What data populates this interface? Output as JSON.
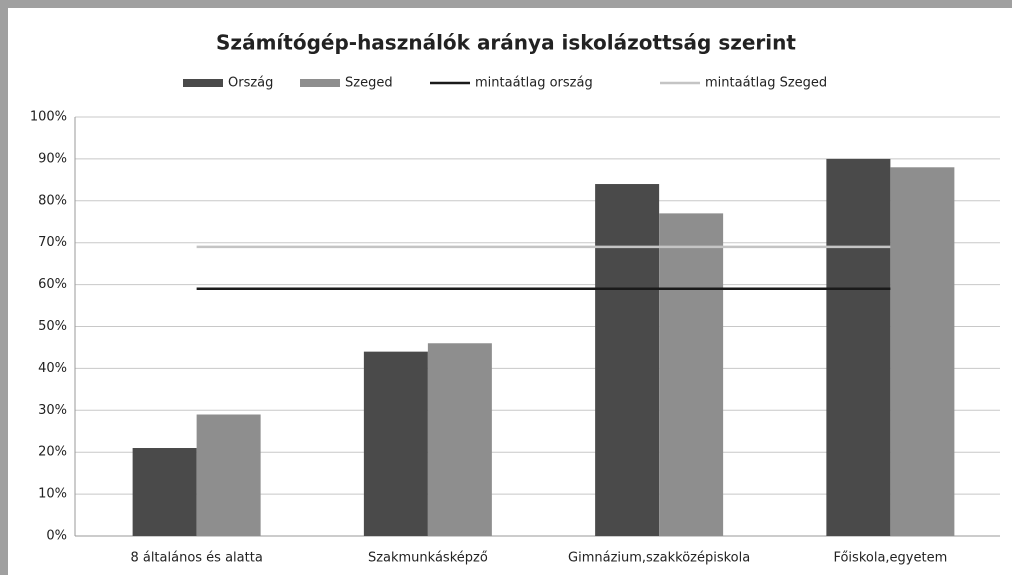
{
  "chart_data": {
    "type": "bar",
    "title": "Számítógép-használók aránya iskolázottság szerint",
    "categories": [
      "8 általános és alatta",
      "Szakmunkásképző",
      "Gimnázium,szakközépiskola",
      "Főiskola,egyetem"
    ],
    "series": [
      {
        "name": "Ország",
        "color": "#4a4a4a",
        "values": [
          21,
          44,
          84,
          90
        ]
      },
      {
        "name": "Szeged",
        "color": "#8e8e8e",
        "values": [
          29,
          46,
          77,
          88
        ]
      },
      {
        "name": "mintaátlag ország",
        "type": "line",
        "color": "#1a1a1a",
        "values": [
          59,
          59,
          59,
          59
        ]
      },
      {
        "name": "mintaátlag Szeged",
        "type": "line",
        "color": "#c4c4c4",
        "values": [
          69,
          69,
          69,
          69
        ]
      }
    ],
    "ylim": [
      0,
      100
    ],
    "yticks": [
      {
        "value": 0,
        "label": "0%"
      },
      {
        "value": 10,
        "label": "10%"
      },
      {
        "value": 20,
        "label": "20%"
      },
      {
        "value": 30,
        "label": "30%"
      },
      {
        "value": 40,
        "label": "40%"
      },
      {
        "value": 50,
        "label": "50%"
      },
      {
        "value": 60,
        "label": "60%"
      },
      {
        "value": 70,
        "label": "70%"
      },
      {
        "value": 80,
        "label": "80%"
      },
      {
        "value": 90,
        "label": "90%"
      },
      {
        "value": 100,
        "label": "100%"
      }
    ],
    "grid": true,
    "legend": "top"
  }
}
